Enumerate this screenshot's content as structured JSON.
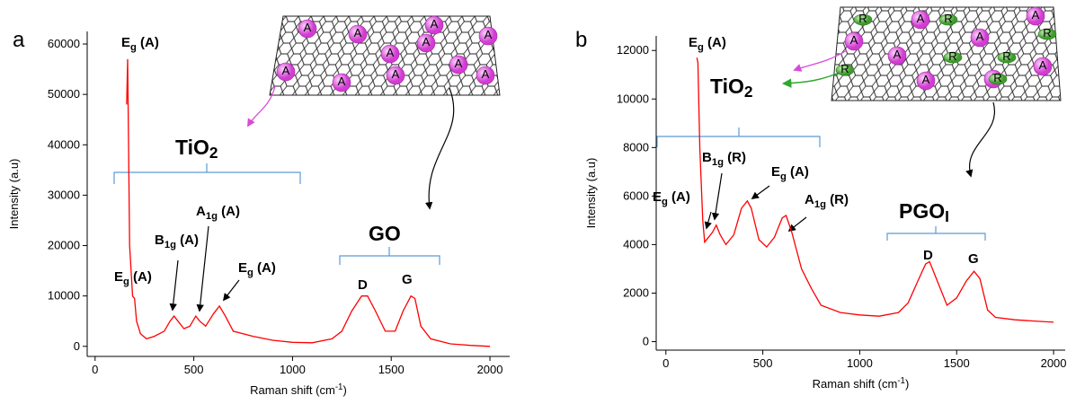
{
  "chart_data": [
    {
      "type": "line",
      "panel": "a",
      "y_label": "Intensity (a.u)",
      "x_label": {
        "base": "Raman shift (cm",
        "sup": "-1",
        "tail": ")"
      },
      "xlim": [
        -40,
        2100
      ],
      "ylim": [
        -2000,
        62500
      ],
      "xticks": [
        0,
        500,
        1000,
        1500,
        2000
      ],
      "yticks": [
        0,
        10000,
        20000,
        30000,
        40000,
        50000,
        60000
      ],
      "color": "#ff0000",
      "x": [
        160,
        165,
        175,
        190,
        200,
        210,
        230,
        260,
        300,
        350,
        380,
        400,
        420,
        450,
        480,
        510,
        530,
        560,
        600,
        630,
        660,
        700,
        800,
        900,
        1000,
        1100,
        1200,
        1250,
        1300,
        1350,
        1380,
        1420,
        1470,
        1520,
        1560,
        1600,
        1620,
        1650,
        1700,
        1800,
        1900,
        2000
      ],
      "values": [
        48000,
        57000,
        20000,
        10000,
        9500,
        5000,
        2500,
        1500,
        2000,
        3000,
        5000,
        6000,
        5000,
        3500,
        4000,
        6000,
        5000,
        4000,
        6500,
        8000,
        6000,
        3000,
        2000,
        1200,
        800,
        700,
        1500,
        3000,
        7000,
        10000,
        10000,
        7000,
        3000,
        3000,
        7000,
        10000,
        9500,
        4000,
        1500,
        500,
        200,
        0
      ],
      "annotations": [
        {
          "base": "E",
          "sub": "g",
          "tail": " (A)"
        },
        {
          "base": "TiO",
          "sub": "2",
          "tail": ""
        },
        {
          "base": "E",
          "sub": "g",
          "tail": " (A)"
        },
        {
          "base": "B",
          "sub": "1g",
          "tail": " (A)"
        },
        {
          "base": "A",
          "sub": "1g",
          "tail": " (A)"
        },
        {
          "base": "E",
          "sub": "g",
          "tail": " (A)"
        },
        {
          "base": "GO",
          "sub": "",
          "tail": ""
        },
        {
          "base": "D",
          "sub": "",
          "tail": ""
        },
        {
          "base": "G",
          "sub": "",
          "tail": ""
        }
      ],
      "sphere_labels": [
        "A"
      ]
    },
    {
      "type": "line",
      "panel": "b",
      "y_label": "Intensity (a.u)",
      "x_label": {
        "base": "Raman shift (cm",
        "sup": "-1",
        "tail": ")"
      },
      "xlim": [
        -50,
        2060
      ],
      "ylim": [
        -350,
        12600
      ],
      "xticks": [
        0,
        500,
        1000,
        1500,
        2000
      ],
      "yticks": [
        0,
        2000,
        4000,
        6000,
        8000,
        10000,
        12000
      ],
      "color": "#ff0000",
      "x": [
        160,
        165,
        175,
        190,
        200,
        220,
        240,
        260,
        280,
        310,
        350,
        390,
        420,
        440,
        480,
        520,
        560,
        600,
        620,
        650,
        700,
        750,
        800,
        900,
        1000,
        1100,
        1200,
        1250,
        1300,
        1340,
        1360,
        1400,
        1450,
        1500,
        1550,
        1590,
        1620,
        1660,
        1700,
        1800,
        1900,
        2000
      ],
      "values": [
        11700,
        11500,
        8000,
        5000,
        4100,
        4300,
        4500,
        4800,
        4400,
        4000,
        4400,
        5500,
        5800,
        5500,
        4200,
        3900,
        4300,
        5100,
        5200,
        4500,
        3000,
        2200,
        1500,
        1200,
        1100,
        1050,
        1200,
        1600,
        2500,
        3200,
        3300,
        2500,
        1500,
        1800,
        2500,
        2900,
        2600,
        1300,
        1000,
        900,
        850,
        800
      ],
      "annotations": [
        {
          "base": "E",
          "sub": "g",
          "tail": " (A)"
        },
        {
          "base": "TiO",
          "sub": "2",
          "tail": ""
        },
        {
          "base": "B",
          "sub": "1g",
          "tail": " (R)"
        },
        {
          "base": "E",
          "sub": "g",
          "tail": " (A)"
        },
        {
          "base": "E",
          "sub": "g",
          "tail": " (A)"
        },
        {
          "base": "A",
          "sub": "1g",
          "tail": " (R)"
        },
        {
          "base": "PGO",
          "sub": "I",
          "tail": ""
        },
        {
          "base": "D",
          "sub": "",
          "tail": ""
        },
        {
          "base": "G",
          "sub": "",
          "tail": ""
        }
      ],
      "sphere_labels": [
        "A",
        "R"
      ]
    }
  ]
}
